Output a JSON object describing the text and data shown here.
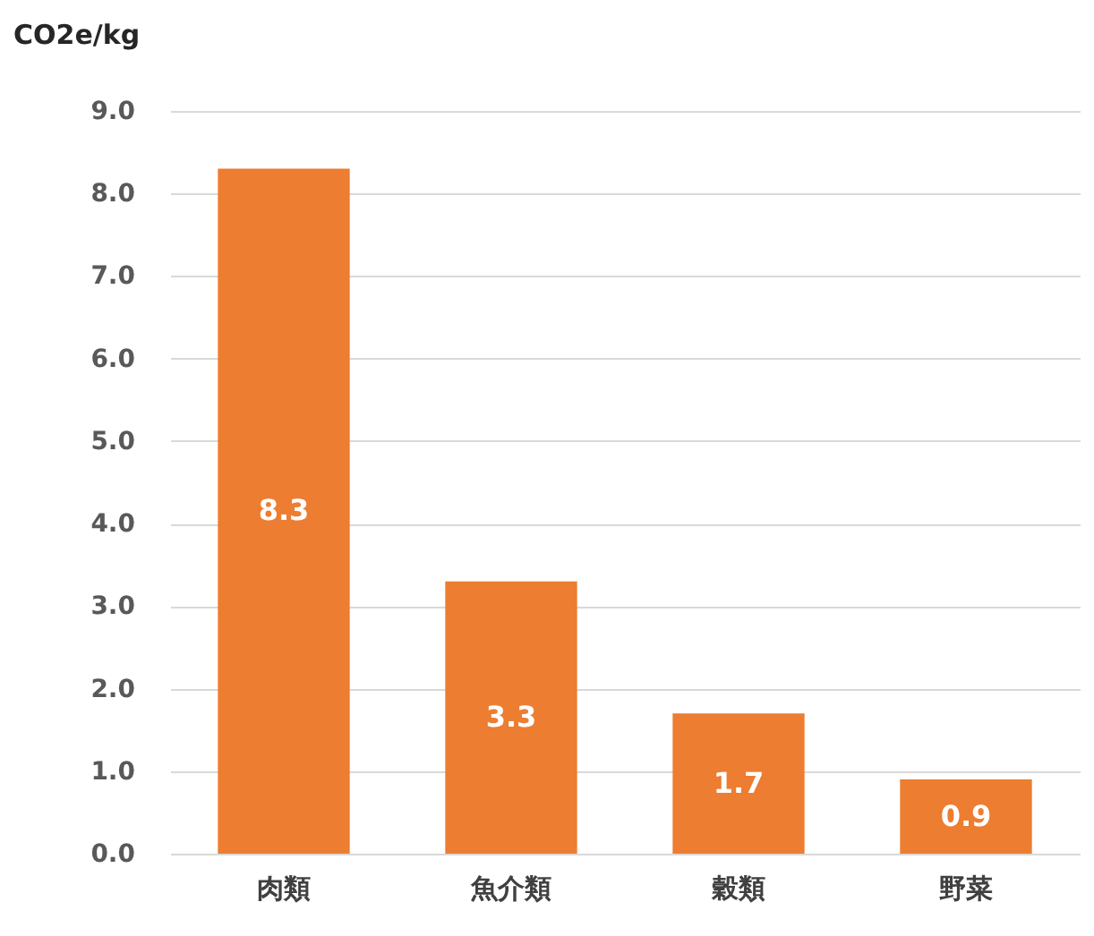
{
  "chart_data": {
    "type": "bar",
    "ylabel": "CO2e/kg",
    "categories": [
      "肉類",
      "魚介類",
      "穀類",
      "野菜"
    ],
    "values": [
      8.3,
      3.3,
      1.7,
      0.9
    ],
    "color": "#ed7d31",
    "ylim": [
      0,
      9
    ],
    "yticks": [
      {
        "value": 0,
        "label": "0.0"
      },
      {
        "value": 1,
        "label": "1.0"
      },
      {
        "value": 2,
        "label": "2.0"
      },
      {
        "value": 3,
        "label": "3.0"
      },
      {
        "value": 4,
        "label": "4.0"
      },
      {
        "value": 5,
        "label": "5.0"
      },
      {
        "value": 6,
        "label": "6.0"
      },
      {
        "value": 7,
        "label": "7.0"
      },
      {
        "value": 8,
        "label": "8.0"
      },
      {
        "value": 9,
        "label": "9.0"
      }
    ],
    "grid": "y",
    "data_labels": true
  }
}
